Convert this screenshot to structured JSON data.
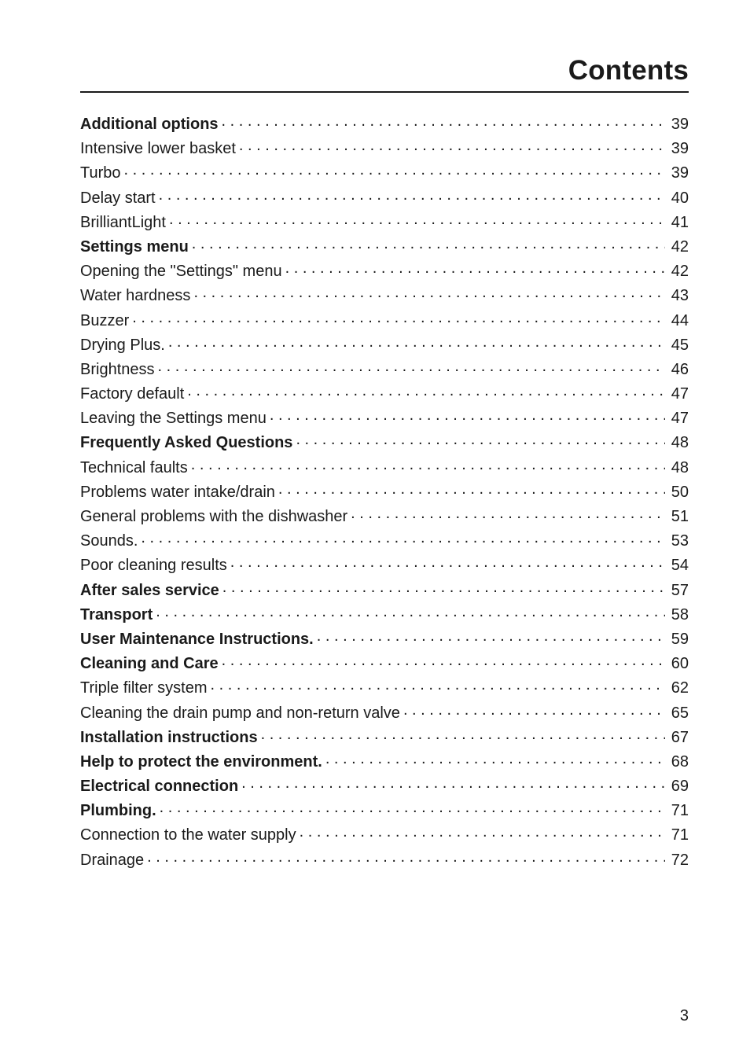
{
  "header": {
    "title": "Contents"
  },
  "page_number": "3",
  "toc": {
    "text_color": "#1a1a1a",
    "background_color": "#ffffff",
    "label_fontsize": 20,
    "header_fontsize": 35,
    "entries": [
      {
        "label": "Additional options",
        "page": "39",
        "bold": true
      },
      {
        "label": "Intensive lower basket",
        "page": "39",
        "bold": false
      },
      {
        "label": "Turbo",
        "page": "39",
        "bold": false
      },
      {
        "label": "Delay start",
        "page": "40",
        "bold": false
      },
      {
        "label": "BrilliantLight",
        "page": "41",
        "bold": false
      },
      {
        "label": "Settings menu",
        "page": "42",
        "bold": true
      },
      {
        "label": "Opening the \"Settings\" menu",
        "page": "42",
        "bold": false
      },
      {
        "label": "Water hardness",
        "page": "43",
        "bold": false
      },
      {
        "label": "Buzzer",
        "page": "44",
        "bold": false
      },
      {
        "label": "Drying Plus.",
        "page": "45",
        "bold": false
      },
      {
        "label": "Brightness",
        "page": "46",
        "bold": false
      },
      {
        "label": "Factory default",
        "page": "47",
        "bold": false
      },
      {
        "label": "Leaving the Settings menu",
        "page": "47",
        "bold": false
      },
      {
        "label": "Frequently Asked Questions",
        "page": "48",
        "bold": true
      },
      {
        "label": "Technical faults",
        "page": "48",
        "bold": false
      },
      {
        "label": "Problems water intake/drain",
        "page": "50",
        "bold": false
      },
      {
        "label": "General problems with the dishwasher",
        "page": "51",
        "bold": false
      },
      {
        "label": "Sounds.",
        "page": "53",
        "bold": false
      },
      {
        "label": "Poor cleaning results",
        "page": "54",
        "bold": false
      },
      {
        "label": "After sales service",
        "page": "57",
        "bold": true
      },
      {
        "label": "Transport",
        "page": "58",
        "bold": true
      },
      {
        "label": "User Maintenance Instructions.",
        "page": "59",
        "bold": true
      },
      {
        "label": "Cleaning and Care",
        "page": "60",
        "bold": true
      },
      {
        "label": "Triple filter system",
        "page": "62",
        "bold": false
      },
      {
        "label": "Cleaning the drain pump and non-return valve",
        "page": "65",
        "bold": false
      },
      {
        "label": "Installation instructions",
        "page": "67",
        "bold": true
      },
      {
        "label": "Help to protect the environment.",
        "page": "68",
        "bold": true
      },
      {
        "label": "Electrical connection",
        "page": "69",
        "bold": true
      },
      {
        "label": "Plumbing.",
        "page": "71",
        "bold": true
      },
      {
        "label": "Connection to the water supply",
        "page": "71",
        "bold": false
      },
      {
        "label": "Drainage",
        "page": "72",
        "bold": false
      }
    ]
  }
}
